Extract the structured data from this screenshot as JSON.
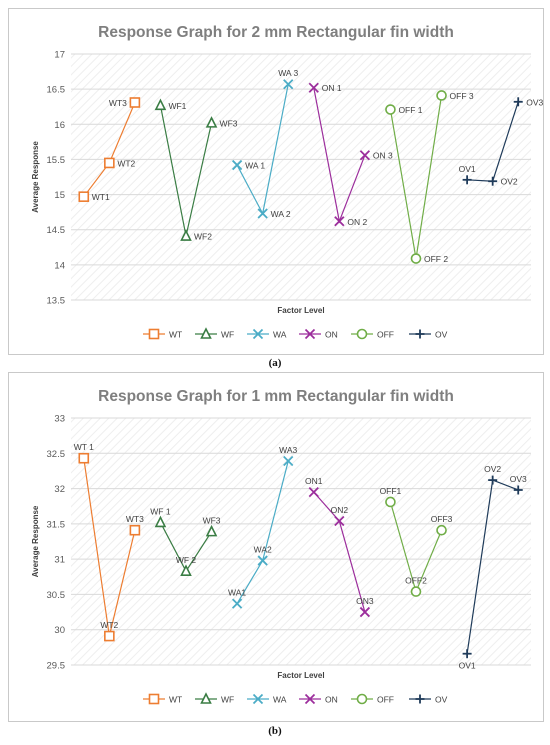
{
  "figure": {
    "caption_a": "(a)",
    "caption_b": "(b)"
  },
  "chart_data": [
    {
      "type": "line",
      "title": "Response Graph for 2 mm Rectangular fin width",
      "xlabel": "Factor Level",
      "ylabel": "Average Response",
      "ylim": [
        13.5,
        17
      ],
      "yticks": [
        "13.5",
        "14",
        "14.5",
        "15",
        "15.5",
        "16",
        "16.5",
        "17"
      ],
      "grid": true,
      "legend": "bottom",
      "series": [
        {
          "name": "WT",
          "color": "#ED7D31",
          "marker": "square",
          "x": [
            1,
            2,
            3
          ],
          "values": [
            14.97,
            15.45,
            16.31
          ],
          "labels": [
            "WT1",
            "WT2",
            "WT3"
          ]
        },
        {
          "name": "WF",
          "color": "#3A7D44",
          "marker": "triangle",
          "x": [
            4,
            5,
            6
          ],
          "values": [
            16.27,
            14.41,
            16.02
          ],
          "labels": [
            "WF1",
            "WF2",
            "WF3"
          ]
        },
        {
          "name": "WA",
          "color": "#4BACC6",
          "marker": "x",
          "x": [
            7,
            8,
            9
          ],
          "values": [
            15.42,
            14.73,
            16.57
          ],
          "labels": [
            "WA 1",
            "WA 2",
            "WA 3"
          ]
        },
        {
          "name": "ON",
          "color": "#9C2E9C",
          "marker": "x",
          "x": [
            10,
            11,
            12
          ],
          "values": [
            16.52,
            14.62,
            15.56
          ],
          "labels": [
            "ON 1",
            "ON 2",
            "ON 3"
          ]
        },
        {
          "name": "OFF",
          "color": "#70AD47",
          "marker": "circle",
          "x": [
            13,
            14,
            15
          ],
          "values": [
            16.21,
            14.09,
            16.41
          ],
          "labels": [
            "OFF 1",
            "OFF 2",
            "OFF 3"
          ]
        },
        {
          "name": "OV",
          "color": "#1F3B5A",
          "marker": "plus",
          "x": [
            16,
            17,
            18
          ],
          "values": [
            15.21,
            15.19,
            16.32
          ],
          "labels": [
            "OV1",
            "OV2",
            "OV3"
          ]
        }
      ]
    },
    {
      "type": "line",
      "title": "Response Graph for 1 mm Rectangular fin width",
      "xlabel": "Factor Level",
      "ylabel": "Average Response",
      "ylim": [
        29.5,
        33
      ],
      "yticks": [
        "29.5",
        "30",
        "30.5",
        "31",
        "31.5",
        "32",
        "32.5",
        "33"
      ],
      "grid": true,
      "legend": "bottom",
      "series": [
        {
          "name": "WT",
          "color": "#ED7D31",
          "marker": "square",
          "x": [
            1,
            2,
            3
          ],
          "values": [
            32.43,
            29.91,
            31.41
          ],
          "labels": [
            "WT 1",
            "WT2",
            "WT3"
          ]
        },
        {
          "name": "WF",
          "color": "#3A7D44",
          "marker": "triangle",
          "x": [
            4,
            5,
            6
          ],
          "values": [
            31.52,
            30.83,
            31.39
          ],
          "labels": [
            "WF 1",
            "WF 2",
            "WF3"
          ]
        },
        {
          "name": "WA",
          "color": "#4BACC6",
          "marker": "x",
          "x": [
            7,
            8,
            9
          ],
          "values": [
            30.37,
            30.98,
            32.39
          ],
          "labels": [
            "WA1",
            "WA2",
            "WA3"
          ]
        },
        {
          "name": "ON",
          "color": "#9C2E9C",
          "marker": "x",
          "x": [
            10,
            11,
            12
          ],
          "values": [
            31.95,
            31.54,
            30.25
          ],
          "labels": [
            "ON1",
            "ON2",
            "ON3"
          ]
        },
        {
          "name": "OFF",
          "color": "#70AD47",
          "marker": "circle",
          "x": [
            13,
            14,
            15
          ],
          "values": [
            31.81,
            30.54,
            31.41
          ],
          "labels": [
            "OFF1",
            "OFF2",
            "OFF3"
          ]
        },
        {
          "name": "OV",
          "color": "#1F3B5A",
          "marker": "plus",
          "x": [
            16,
            17,
            18
          ],
          "values": [
            29.66,
            32.12,
            31.98
          ],
          "labels": [
            "OV1",
            "OV2",
            "OV3"
          ]
        }
      ]
    }
  ]
}
